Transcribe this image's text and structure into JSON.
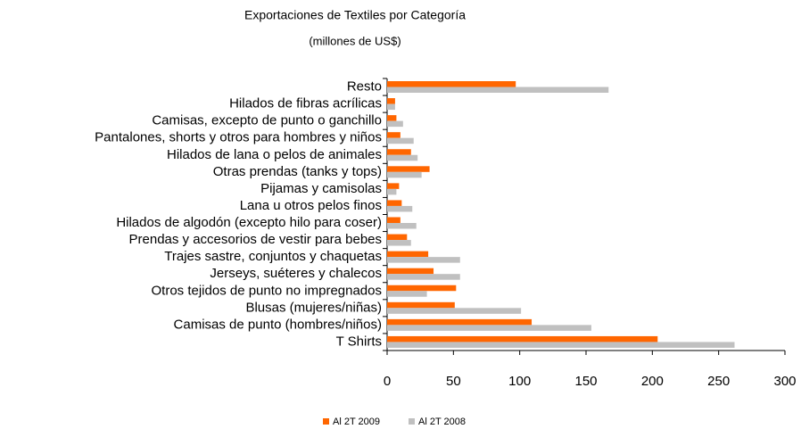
{
  "chart_data": {
    "type": "bar",
    "orientation": "horizontal",
    "title": "Exportaciones de Textiles por Categoría",
    "subtitle": "(millones de US$)",
    "categories": [
      "Resto",
      "Hilados de fibras acrílicas",
      "Camisas, excepto de punto o ganchillo",
      "Pantalones, shorts y otros para hombres y niños",
      "Hilados de lana o pelos de animales",
      "Otras prendas (tanks y tops)",
      "Pijamas y camisolas",
      "Lana u otros pelos finos",
      "Hilados de algodón (excepto hilo para coser)",
      "Prendas y accesorios de vestir para bebes",
      "Trajes sastre, conjuntos y chaquetas",
      "Jerseys, suéteres y chalecos",
      "Otros tejidos de punto no impregnados",
      "Blusas (mujeres/niñas)",
      "Camisas de punto (hombres/niños)",
      "T Shirts"
    ],
    "series": [
      {
        "name": "Al 2T 2009",
        "color": "#ff6600",
        "values": [
          97,
          6,
          7,
          10,
          18,
          32,
          9,
          11,
          10,
          15,
          31,
          35,
          52,
          51,
          109,
          204
        ]
      },
      {
        "name": "Al 2T 2008",
        "color": "#c0c0c0",
        "values": [
          167,
          6,
          12,
          20,
          23,
          26,
          7,
          19,
          22,
          18,
          55,
          55,
          30,
          101,
          154,
          262
        ]
      }
    ],
    "xlim": [
      0,
      300
    ],
    "xticks": [
      0,
      50,
      100,
      150,
      200,
      250,
      300
    ],
    "grid": false,
    "legend": "bottom"
  }
}
